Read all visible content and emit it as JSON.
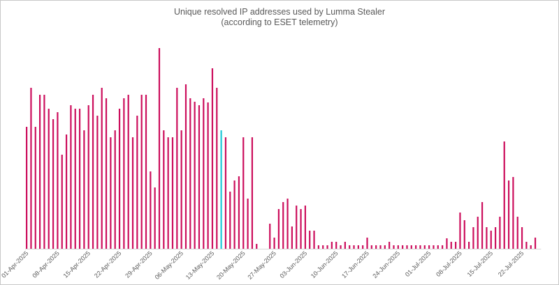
{
  "chart_data": {
    "type": "bar",
    "title": "Unique resolved IP addresses used by Lumma Stealer",
    "subtitle": "(according to ESET telemetry)",
    "xlabel": "",
    "ylabel": "",
    "ylim": [
      0,
      290
    ],
    "grid": false,
    "legend": "none",
    "colors": {
      "bar": "#cc0e5c",
      "highlight": "#1ec8d8",
      "axis": "#d9d9d9",
      "text": "#595959"
    },
    "highlight_date": "15-May-2025",
    "tick_labels": [
      "01-Apr-2025",
      "08-Apr-2025",
      "15-Apr-2025",
      "22-Apr-2025",
      "29-Apr-2025",
      "06-May-2025",
      "13-May-2025",
      "20-May-2025",
      "27-May-2025",
      "03-Jun-2025",
      "10-Jun-2025",
      "17-Jun-2025",
      "24-Jun-2025",
      "01-Jul-2025",
      "08-Jul-2025",
      "15-Jul-2025",
      "22-Jul-2025"
    ],
    "x": [
      "01-Apr-2025",
      "02-Apr-2025",
      "03-Apr-2025",
      "04-Apr-2025",
      "05-Apr-2025",
      "06-Apr-2025",
      "07-Apr-2025",
      "08-Apr-2025",
      "09-Apr-2025",
      "10-Apr-2025",
      "11-Apr-2025",
      "12-Apr-2025",
      "13-Apr-2025",
      "14-Apr-2025",
      "15-Apr-2025",
      "16-Apr-2025",
      "17-Apr-2025",
      "18-Apr-2025",
      "19-Apr-2025",
      "20-Apr-2025",
      "21-Apr-2025",
      "22-Apr-2025",
      "23-Apr-2025",
      "24-Apr-2025",
      "25-Apr-2025",
      "26-Apr-2025",
      "27-Apr-2025",
      "28-Apr-2025",
      "29-Apr-2025",
      "30-Apr-2025",
      "01-May-2025",
      "02-May-2025",
      "03-May-2025",
      "04-May-2025",
      "05-May-2025",
      "06-May-2025",
      "07-May-2025",
      "08-May-2025",
      "09-May-2025",
      "10-May-2025",
      "11-May-2025",
      "12-May-2025",
      "13-May-2025",
      "14-May-2025",
      "15-May-2025",
      "16-May-2025",
      "17-May-2025",
      "18-May-2025",
      "19-May-2025",
      "20-May-2025",
      "21-May-2025",
      "22-May-2025",
      "23-May-2025",
      "24-May-2025",
      "25-May-2025",
      "26-May-2025",
      "27-May-2025",
      "28-May-2025",
      "29-May-2025",
      "30-May-2025",
      "31-May-2025",
      "01-Jun-2025",
      "02-Jun-2025",
      "03-Jun-2025",
      "04-Jun-2025",
      "05-Jun-2025",
      "06-Jun-2025",
      "07-Jun-2025",
      "08-Jun-2025",
      "09-Jun-2025",
      "10-Jun-2025",
      "11-Jun-2025",
      "12-Jun-2025",
      "13-Jun-2025",
      "14-Jun-2025",
      "15-Jun-2025",
      "16-Jun-2025",
      "17-Jun-2025",
      "18-Jun-2025",
      "19-Jun-2025",
      "20-Jun-2025",
      "21-Jun-2025",
      "22-Jun-2025",
      "23-Jun-2025",
      "24-Jun-2025",
      "25-Jun-2025",
      "26-Jun-2025",
      "27-Jun-2025",
      "28-Jun-2025",
      "29-Jun-2025",
      "30-Jun-2025",
      "01-Jul-2025",
      "02-Jul-2025",
      "03-Jul-2025",
      "04-Jul-2025",
      "05-Jul-2025",
      "06-Jul-2025",
      "07-Jul-2025",
      "08-Jul-2025",
      "09-Jul-2025",
      "10-Jul-2025",
      "11-Jul-2025",
      "12-Jul-2025",
      "13-Jul-2025",
      "14-Jul-2025",
      "15-Jul-2025",
      "16-Jul-2025",
      "17-Jul-2025",
      "18-Jul-2025",
      "19-Jul-2025",
      "20-Jul-2025",
      "21-Jul-2025",
      "22-Jul-2025",
      "23-Jul-2025",
      "24-Jul-2025",
      "25-Jul-2025"
    ],
    "values": [
      175,
      231,
      175,
      221,
      221,
      201,
      186,
      196,
      135,
      164,
      206,
      201,
      201,
      170,
      206,
      221,
      191,
      231,
      216,
      160,
      170,
      201,
      216,
      221,
      160,
      191,
      221,
      221,
      111,
      88,
      288,
      170,
      160,
      160,
      231,
      170,
      236,
      216,
      211,
      206,
      216,
      210,
      259,
      231,
      170,
      160,
      82,
      98,
      104,
      160,
      72,
      160,
      7,
      0,
      0,
      36,
      16,
      57,
      67,
      72,
      32,
      62,
      57,
      62,
      26,
      26,
      5,
      5,
      5,
      10,
      10,
      5,
      10,
      5,
      5,
      5,
      5,
      16,
      5,
      5,
      5,
      5,
      10,
      5,
      5,
      5,
      5,
      5,
      5,
      5,
      5,
      5,
      5,
      5,
      5,
      15,
      10,
      10,
      52,
      41,
      10,
      31,
      46,
      67,
      31,
      26,
      31,
      46,
      154,
      98,
      103,
      46,
      31,
      10,
      5,
      16
    ]
  }
}
